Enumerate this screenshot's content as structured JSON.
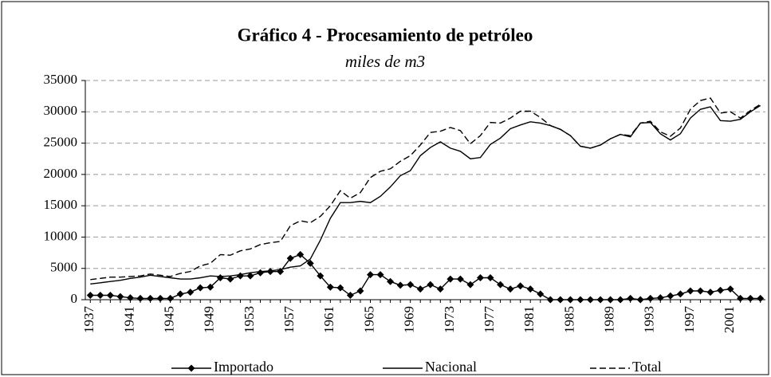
{
  "chart_data": {
    "type": "line",
    "title": "Gráfico 4 - Procesamiento de petróleo",
    "subtitle": "miles de m3",
    "x": [
      1937,
      1938,
      1939,
      1940,
      1941,
      1942,
      1943,
      1944,
      1945,
      1946,
      1947,
      1948,
      1949,
      1950,
      1951,
      1952,
      1953,
      1954,
      1955,
      1956,
      1957,
      1958,
      1959,
      1960,
      1961,
      1962,
      1963,
      1964,
      1965,
      1966,
      1967,
      1968,
      1969,
      1970,
      1971,
      1972,
      1973,
      1974,
      1975,
      1976,
      1977,
      1978,
      1979,
      1980,
      1981,
      1982,
      1983,
      1984,
      1985,
      1986,
      1987,
      1988,
      1989,
      1990,
      1991,
      1992,
      1993,
      1994,
      1995,
      1996,
      1997,
      1998,
      1999,
      2000,
      2001,
      2002,
      2003,
      2004
    ],
    "xlim": [
      1936.5,
      2004.5
    ],
    "xticks": [
      1937,
      1941,
      1945,
      1949,
      1953,
      1957,
      1961,
      1965,
      1969,
      1973,
      1977,
      1981,
      1985,
      1989,
      1993,
      1997,
      2001
    ],
    "ylim": [
      0,
      35000
    ],
    "yticks": [
      0,
      5000,
      10000,
      15000,
      20000,
      25000,
      30000,
      35000
    ],
    "grid": true,
    "legend": "bottom",
    "series": [
      {
        "name": "Importado",
        "color": "#000000",
        "marker": "diamond",
        "dash": "solid",
        "values": [
          700,
          700,
          700,
          500,
          300,
          200,
          200,
          200,
          200,
          900,
          1200,
          1900,
          2000,
          3500,
          3300,
          3800,
          3800,
          4300,
          4500,
          4500,
          6600,
          7200,
          5800,
          3800,
          2000,
          1900,
          700,
          1400,
          4000,
          4000,
          2900,
          2300,
          2400,
          1700,
          2400,
          1700,
          3300,
          3300,
          2400,
          3500,
          3500,
          2400,
          1700,
          2200,
          1700,
          900,
          0,
          0,
          0,
          0,
          0,
          0,
          0,
          0,
          200,
          0,
          200,
          300,
          600,
          900,
          1400,
          1400,
          1200,
          1500,
          1700,
          200,
          200,
          200
        ]
      },
      {
        "name": "Nacional",
        "color": "#000000",
        "marker": "none",
        "dash": "solid",
        "values": [
          2500,
          2700,
          2900,
          3100,
          3400,
          3600,
          3900,
          3700,
          3500,
          3300,
          3300,
          3500,
          3800,
          3700,
          3800,
          4000,
          4300,
          4500,
          4600,
          4800,
          5200,
          5400,
          6500,
          9500,
          13000,
          15500,
          15500,
          15700,
          15500,
          16500,
          18000,
          19800,
          20600,
          23000,
          24300,
          25200,
          24200,
          23700,
          22500,
          22700,
          24800,
          25800,
          27300,
          27900,
          28400,
          28200,
          27800,
          27200,
          26200,
          24500,
          24200,
          24700,
          25700,
          26400,
          26000,
          28200,
          28300,
          26500,
          25500,
          26500,
          29000,
          30400,
          30800,
          28600,
          28500,
          28800,
          30000,
          31000
        ]
      },
      {
        "name": "Total",
        "color": "#000000",
        "marker": "none",
        "dash": "dashed",
        "values": [
          3200,
          3400,
          3600,
          3600,
          3700,
          3800,
          4100,
          3900,
          3700,
          4200,
          4500,
          5400,
          5800,
          7200,
          7100,
          7800,
          8100,
          8800,
          9100,
          9300,
          11800,
          12600,
          12300,
          13300,
          15000,
          17400,
          16200,
          17100,
          19500,
          20500,
          20900,
          22100,
          23000,
          24700,
          26700,
          26900,
          27500,
          27000,
          24900,
          26200,
          28300,
          28200,
          29000,
          30100,
          30100,
          29100,
          27800,
          27200,
          26200,
          24500,
          24200,
          24700,
          25700,
          26400,
          26200,
          28200,
          28500,
          26800,
          26100,
          27400,
          30400,
          31800,
          32200,
          29800,
          30000,
          29000,
          30200,
          31200
        ]
      }
    ]
  }
}
